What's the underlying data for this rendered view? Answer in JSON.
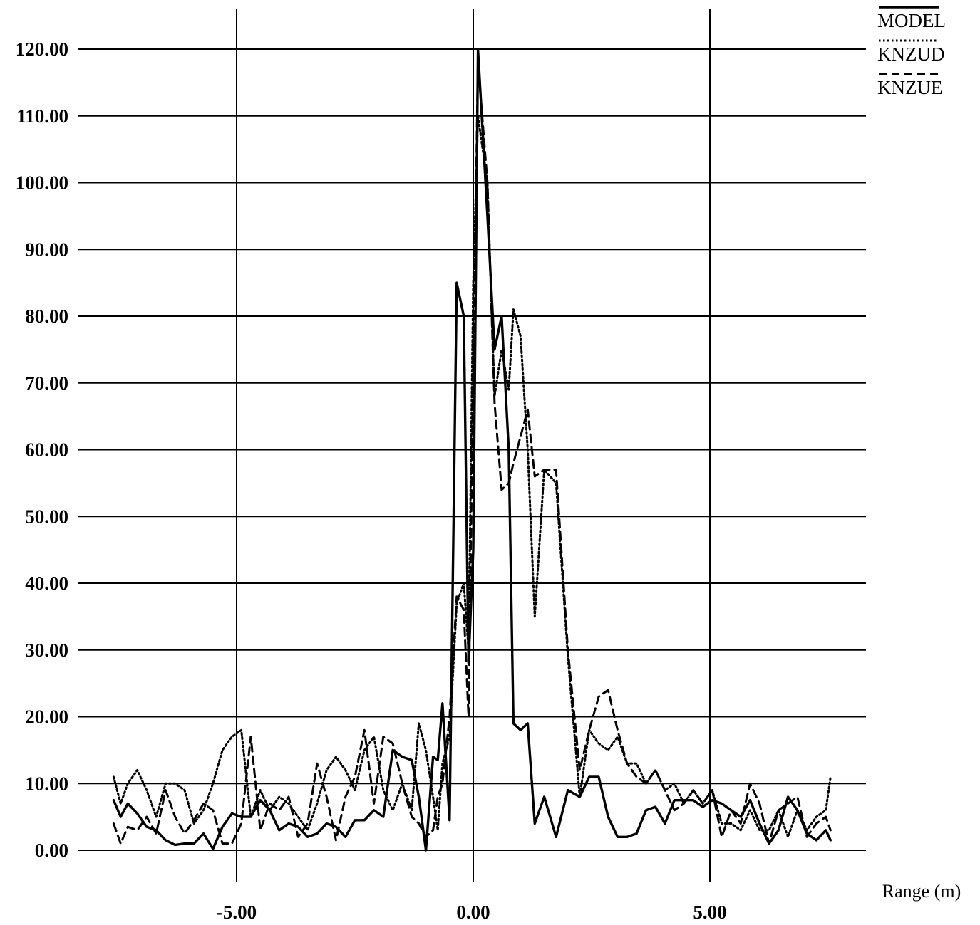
{
  "chart_data": {
    "type": "line",
    "title": "",
    "xlabel": "Range (m)",
    "ylabel": "",
    "xlim": [
      -8.3,
      8.3
    ],
    "ylim": [
      0,
      120
    ],
    "x_ticks": [
      -5,
      0,
      5
    ],
    "x_tick_labels": [
      "-5.00",
      "0.00",
      "5.00"
    ],
    "y_ticks": [
      0,
      10,
      20,
      30,
      40,
      50,
      60,
      70,
      80,
      90,
      100,
      110,
      120
    ],
    "y_tick_labels": [
      "0.00",
      "10.00",
      "20.00",
      "30.00",
      "40.00",
      "50.00",
      "60.00",
      "70.00",
      "80.00",
      "90.00",
      "100.00",
      "110.00",
      "120.00"
    ],
    "grid": true,
    "legend_position": "top-right",
    "series": [
      {
        "name": "MODEL",
        "style": "solid",
        "x": [
          -7.6,
          -7.45,
          -7.3,
          -7.1,
          -6.9,
          -6.7,
          -6.5,
          -6.3,
          -6.1,
          -5.9,
          -5.7,
          -5.5,
          -5.3,
          -5.1,
          -4.9,
          -4.7,
          -4.5,
          -4.3,
          -4.1,
          -3.9,
          -3.7,
          -3.5,
          -3.3,
          -3.1,
          -2.9,
          -2.7,
          -2.5,
          -2.3,
          -2.1,
          -1.9,
          -1.7,
          -1.5,
          -1.3,
          -1.15,
          -1.0,
          -0.85,
          -0.75,
          -0.65,
          -0.5,
          -0.35,
          -0.2,
          -0.1,
          0.0,
          0.1,
          0.3,
          0.45,
          0.6,
          0.75,
          0.85,
          1.0,
          1.15,
          1.3,
          1.5,
          1.75,
          2.0,
          2.25,
          2.45,
          2.65,
          2.85,
          3.05,
          3.25,
          3.45,
          3.65,
          3.85,
          4.05,
          4.25,
          4.45,
          4.65,
          4.85,
          5.05,
          5.25,
          5.45,
          5.65,
          5.85,
          6.05,
          6.25,
          6.45,
          6.65,
          6.85,
          7.05,
          7.25,
          7.45,
          7.55
        ],
        "y": [
          7.5,
          5,
          7,
          5.5,
          3.5,
          3,
          1.5,
          0.8,
          1,
          1,
          2.5,
          0.2,
          3.5,
          5.5,
          5,
          5,
          7.5,
          6,
          3,
          4,
          3.5,
          2,
          2.5,
          4,
          3.5,
          2,
          4.5,
          4.5,
          6,
          5,
          15,
          14,
          13.5,
          8,
          0,
          14,
          13.5,
          22,
          4.5,
          85,
          80,
          28,
          45,
          120,
          95,
          75,
          80,
          60,
          19,
          18,
          19,
          4,
          8,
          2,
          9,
          8,
          11,
          11,
          5,
          2,
          2,
          2.5,
          6,
          6.5,
          4,
          7.5,
          7.5,
          7.5,
          6.5,
          7.5,
          7,
          6,
          5,
          7.5,
          4,
          1,
          3,
          8,
          6,
          2.5,
          1.5,
          3,
          1.5
        ]
      },
      {
        "name": "KNZUD",
        "style": "dotted",
        "x": [
          -7.6,
          -7.45,
          -7.3,
          -7.1,
          -6.9,
          -6.7,
          -6.5,
          -6.3,
          -6.1,
          -5.9,
          -5.7,
          -5.5,
          -5.3,
          -5.1,
          -4.9,
          -4.7,
          -4.5,
          -4.3,
          -4.1,
          -3.9,
          -3.7,
          -3.5,
          -3.3,
          -3.1,
          -2.9,
          -2.7,
          -2.5,
          -2.3,
          -2.1,
          -1.9,
          -1.7,
          -1.5,
          -1.3,
          -1.15,
          -1.0,
          -0.85,
          -0.75,
          -0.65,
          -0.5,
          -0.35,
          -0.2,
          -0.1,
          0.0,
          0.1,
          0.3,
          0.45,
          0.6,
          0.75,
          0.85,
          1.0,
          1.15,
          1.3,
          1.5,
          1.75,
          2.0,
          2.25,
          2.45,
          2.65,
          2.85,
          3.05,
          3.25,
          3.45,
          3.65,
          3.85,
          4.05,
          4.25,
          4.45,
          4.65,
          4.85,
          5.05,
          5.25,
          5.45,
          5.65,
          5.85,
          6.05,
          6.25,
          6.45,
          6.65,
          6.85,
          7.05,
          7.25,
          7.45,
          7.55
        ],
        "y": [
          11,
          7,
          10,
          12,
          9,
          5,
          10,
          10,
          9,
          4,
          6,
          10,
          15,
          17,
          18,
          5,
          9,
          6,
          8,
          7,
          5,
          3,
          7,
          12,
          14,
          12,
          9,
          15,
          17,
          9,
          6,
          10,
          6,
          19,
          15,
          8,
          3,
          13,
          17,
          37,
          40,
          30,
          85,
          110,
          100,
          68,
          75,
          69,
          81,
          77,
          60,
          35,
          57,
          55,
          29,
          8,
          18,
          16,
          15,
          17,
          13,
          13,
          10,
          12,
          9,
          10,
          7,
          9,
          7,
          9,
          4,
          4,
          3,
          6,
          3,
          3,
          6,
          2,
          6,
          3,
          5,
          6,
          11
        ]
      },
      {
        "name": "KNZUE",
        "style": "dashed",
        "x": [
          -7.6,
          -7.45,
          -7.3,
          -7.1,
          -6.9,
          -6.7,
          -6.5,
          -6.3,
          -6.1,
          -5.9,
          -5.7,
          -5.5,
          -5.3,
          -5.1,
          -4.9,
          -4.7,
          -4.5,
          -4.3,
          -4.1,
          -3.9,
          -3.7,
          -3.5,
          -3.3,
          -3.1,
          -2.9,
          -2.7,
          -2.5,
          -2.3,
          -2.1,
          -1.9,
          -1.7,
          -1.5,
          -1.3,
          -1.15,
          -1.0,
          -0.85,
          -0.75,
          -0.65,
          -0.5,
          -0.35,
          -0.2,
          -0.1,
          0.0,
          0.1,
          0.3,
          0.45,
          0.6,
          0.75,
          0.85,
          1.0,
          1.15,
          1.3,
          1.5,
          1.75,
          2.0,
          2.25,
          2.45,
          2.65,
          2.85,
          3.05,
          3.25,
          3.45,
          3.65,
          3.85,
          4.05,
          4.25,
          4.45,
          4.65,
          4.85,
          5.05,
          5.25,
          5.45,
          5.65,
          5.85,
          6.05,
          6.25,
          6.45,
          6.65,
          6.85,
          7.05,
          7.25,
          7.45,
          7.55
        ],
        "y": [
          4,
          1,
          3.5,
          3,
          5,
          2.5,
          9,
          5,
          2.5,
          4.5,
          7,
          6,
          1,
          1,
          4,
          17,
          3,
          7,
          6,
          8,
          2,
          4,
          13,
          8,
          1.5,
          8,
          11,
          18,
          7,
          17,
          16,
          10,
          5,
          4,
          2,
          3,
          8,
          10,
          20,
          38,
          36,
          20,
          72,
          118,
          100,
          67,
          54,
          55,
          58,
          62,
          66,
          56,
          57,
          57,
          30,
          12,
          18,
          23,
          24,
          18,
          13,
          11,
          10,
          12,
          9,
          6,
          7,
          9,
          7,
          9,
          2,
          6,
          4,
          10,
          7,
          1,
          6,
          7,
          8,
          2,
          4,
          5,
          3
        ]
      }
    ]
  }
}
